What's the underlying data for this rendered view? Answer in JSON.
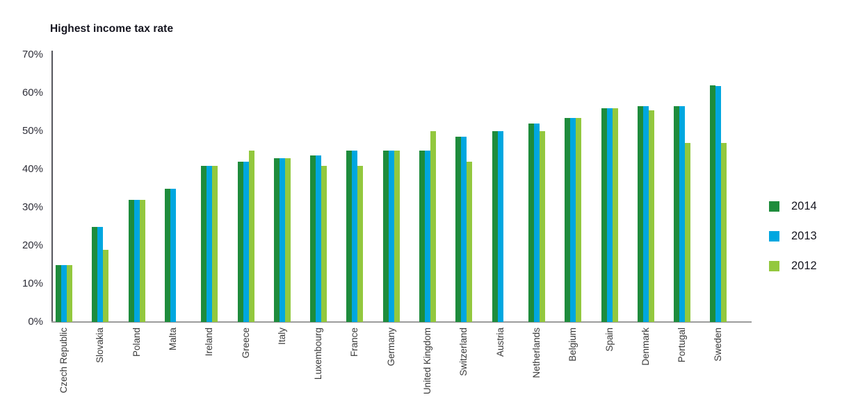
{
  "chart_data": {
    "type": "bar",
    "title": "Highest income tax rate",
    "xlabel": "",
    "ylabel": "",
    "ylim": [
      0,
      70
    ],
    "y_ticks": [
      "0%",
      "10%",
      "20%",
      "30%",
      "40%",
      "50%",
      "60%",
      "70%"
    ],
    "grid": false,
    "legend_position": "right",
    "unit": "%",
    "categories": [
      "Czech Republic",
      "Slovakia",
      "Poland",
      "Malta",
      "Ireland",
      "Greece",
      "Italy",
      "Luxembourg",
      "France",
      "Germany",
      "United Kingdom",
      "Switzerland",
      "Austria",
      "Netherlands",
      "Belgium",
      "Spain",
      "Denmark",
      "Portugal",
      "Sweden"
    ],
    "series": [
      {
        "name": "2014",
        "color": "#1E8C3C",
        "values": [
          15,
          25,
          32,
          35,
          41,
          42,
          43,
          43.6,
          45,
          45,
          45,
          48.5,
          50,
          52,
          53.5,
          56,
          56.5,
          56.5,
          62
        ]
      },
      {
        "name": "2013",
        "color": "#00A7E0",
        "values": [
          15,
          25,
          32,
          35,
          41,
          42,
          43,
          43.6,
          45,
          45,
          45,
          48.5,
          50,
          52,
          53.5,
          56,
          56.5,
          56.5,
          61.8
        ]
      },
      {
        "name": "2012",
        "color": "#93C83E",
        "values": [
          15,
          19,
          32,
          null,
          41,
          45,
          43,
          41,
          41,
          45,
          50,
          42,
          null,
          50,
          53.5,
          56,
          55.4,
          47,
          47
        ]
      }
    ]
  }
}
